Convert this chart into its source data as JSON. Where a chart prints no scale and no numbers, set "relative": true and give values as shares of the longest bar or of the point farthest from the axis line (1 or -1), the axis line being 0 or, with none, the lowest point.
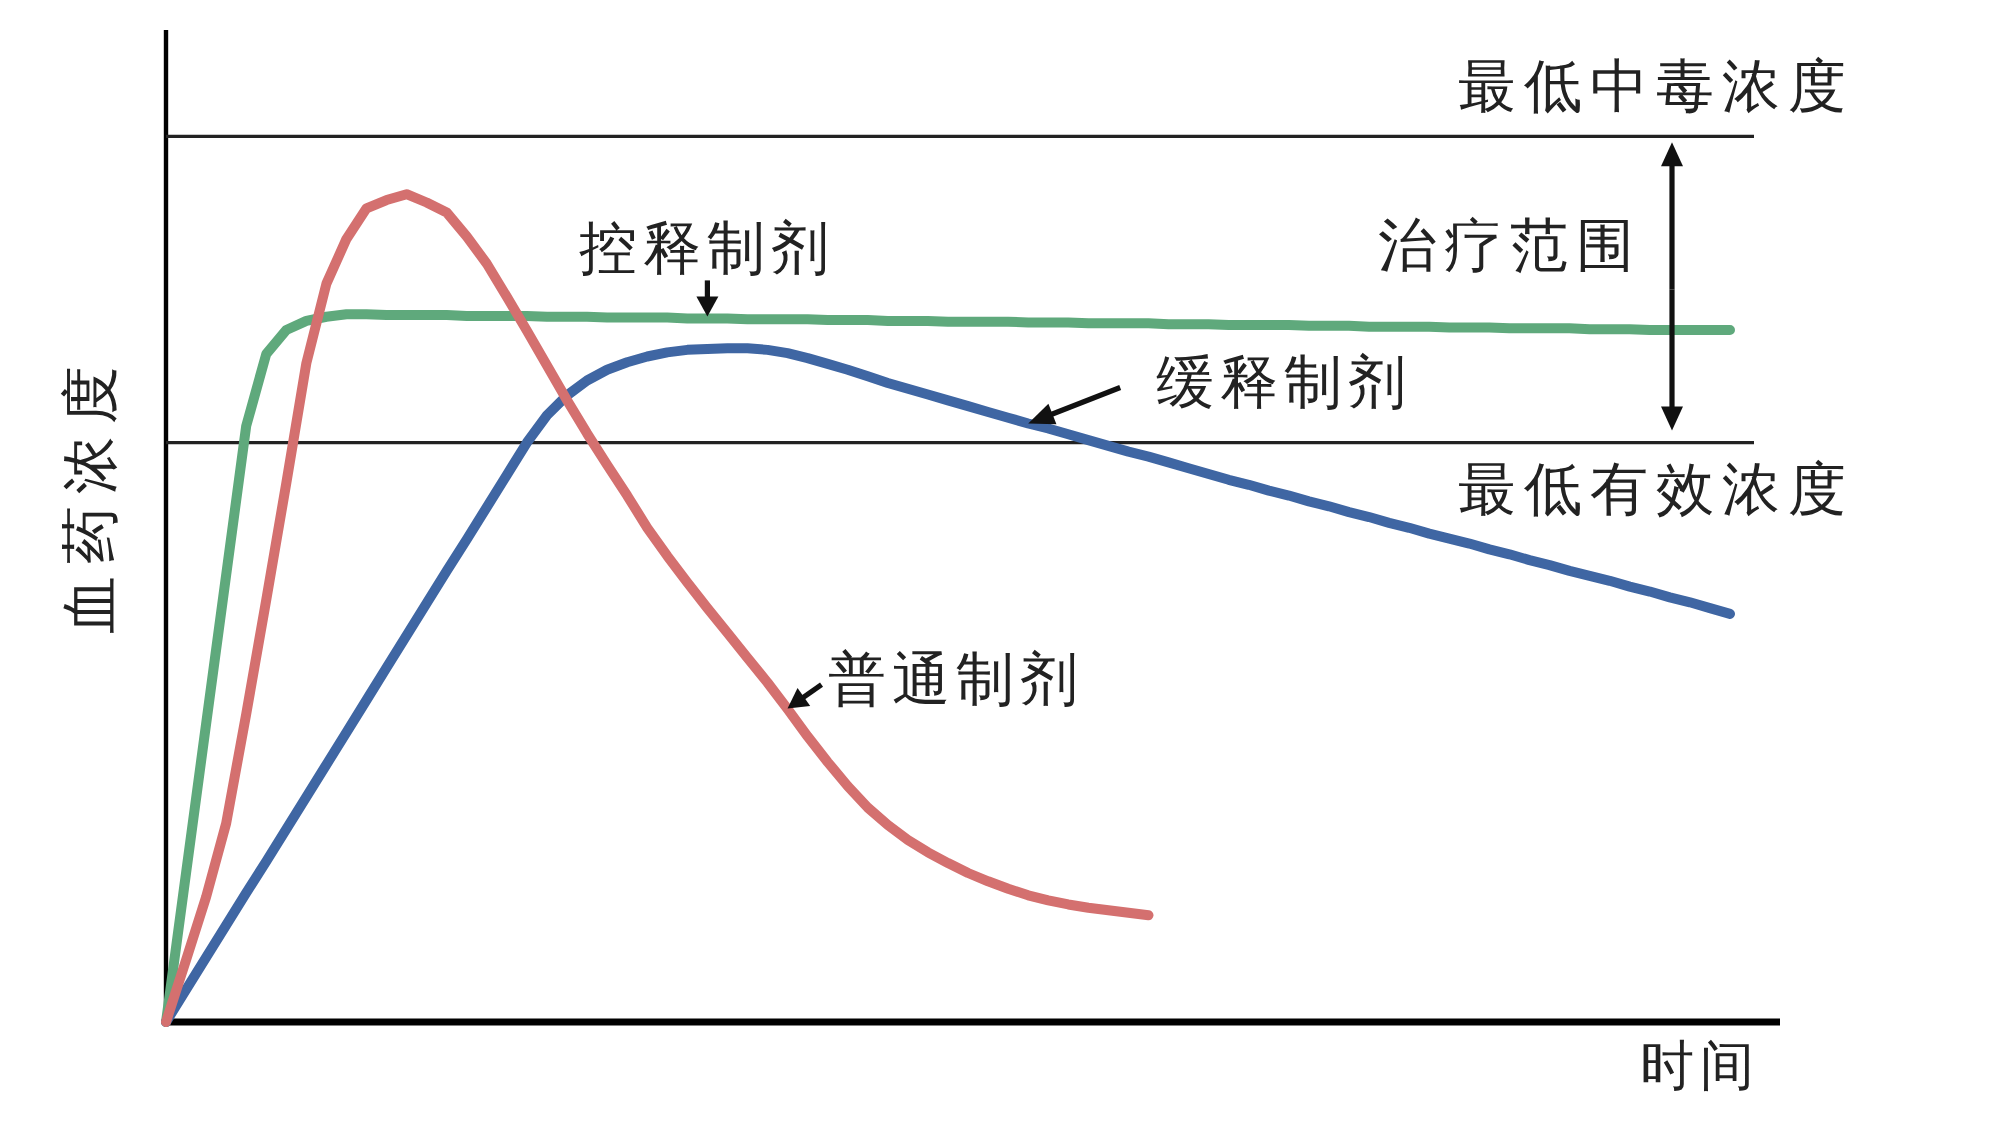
{
  "chart_data": {
    "type": "line",
    "relative": true,
    "xlabel": "时间",
    "ylabel": "血药浓度",
    "categories": [
      null,
      null,
      null,
      null,
      null,
      null,
      null,
      null,
      null,
      null,
      null,
      null,
      null,
      null,
      null,
      null,
      null,
      null,
      null,
      null,
      null,
      null,
      null,
      null,
      null,
      null,
      null,
      null,
      null,
      null,
      null,
      null,
      null,
      null,
      null,
      null,
      null,
      null,
      null,
      null,
      null,
      null,
      null,
      null,
      null,
      null,
      null,
      null,
      null,
      null,
      null,
      null,
      null,
      null,
      null,
      null,
      null,
      null,
      null,
      null,
      null,
      null,
      null,
      null,
      null,
      null,
      null,
      null,
      null,
      null,
      null,
      null,
      null,
      null,
      null,
      null,
      null,
      null,
      null
    ],
    "series": [
      {
        "name": "控释制剂",
        "color": "#5fa97c",
        "values": [
          0,
          0.18,
          0.36,
          0.54,
          0.72,
          0.807,
          0.836,
          0.847,
          0.852,
          0.855,
          0.855,
          0.854,
          0.854,
          0.854,
          0.854,
          0.853,
          0.853,
          0.853,
          0.853,
          0.852,
          0.852,
          0.852,
          0.851,
          0.851,
          0.851,
          0.851,
          0.85,
          0.85,
          0.85,
          0.849,
          0.849,
          0.849,
          0.849,
          0.848,
          0.848,
          0.848,
          0.847,
          0.847,
          0.847,
          0.846,
          0.846,
          0.846,
          0.846,
          0.845,
          0.845,
          0.845,
          0.844,
          0.844,
          0.844,
          0.844,
          0.843,
          0.843,
          0.843,
          0.842,
          0.842,
          0.842,
          0.842,
          0.841,
          0.841,
          0.841,
          0.84,
          0.84,
          0.84,
          0.84,
          0.839,
          0.839,
          0.839,
          0.838,
          0.838,
          0.838,
          0.838,
          0.837,
          0.837,
          0.837,
          0.836,
          0.836,
          0.836,
          0.836,
          0.836
        ]
      },
      {
        "name": "缓释制剂",
        "color": "#3f66a3",
        "values": [
          0,
          0.039,
          0.078,
          0.117,
          0.156,
          0.194,
          0.233,
          0.272,
          0.311,
          0.35,
          0.389,
          0.428,
          0.467,
          0.506,
          0.545,
          0.583,
          0.622,
          0.661,
          0.7,
          0.733,
          0.757,
          0.775,
          0.788,
          0.797,
          0.804,
          0.809,
          0.812,
          0.813,
          0.814,
          0.814,
          0.812,
          0.808,
          0.802,
          0.795,
          0.788,
          0.78,
          0.772,
          0.765,
          0.758,
          0.751,
          0.744,
          0.737,
          0.73,
          0.723,
          0.717,
          0.71,
          0.703,
          0.696,
          0.689,
          0.683,
          0.676,
          0.669,
          0.662,
          0.655,
          0.649,
          0.642,
          0.636,
          0.629,
          0.623,
          0.616,
          0.61,
          0.603,
          0.597,
          0.59,
          0.584,
          0.578,
          0.571,
          0.565,
          0.558,
          0.552,
          0.545,
          0.539,
          0.533,
          0.526,
          0.52,
          0.513,
          0.507,
          0.5,
          0.493
        ]
      },
      {
        "name": "普通制剂",
        "color": "#d4706f",
        "values": [
          0,
          0.075,
          0.151,
          0.24,
          0.372,
          0.51,
          0.651,
          0.796,
          0.892,
          0.946,
          0.983,
          0.993,
          1,
          0.99,
          0.978,
          0.949,
          0.916,
          0.876,
          0.835,
          0.793,
          0.751,
          0.711,
          0.673,
          0.636,
          0.597,
          0.563,
          0.531,
          0.5,
          0.47,
          0.44,
          0.41,
          0.378,
          0.345,
          0.314,
          0.285,
          0.259,
          0.238,
          0.22,
          0.205,
          0.192,
          0.18,
          0.17,
          0.161,
          0.153,
          0.147,
          0.142,
          0.138,
          0.135,
          0.132,
          0.129,
          null,
          null,
          null,
          null,
          null,
          null,
          null,
          null,
          null,
          null,
          null,
          null,
          null,
          null,
          null,
          null,
          null,
          null,
          null,
          null,
          null,
          null,
          null,
          null,
          null,
          null,
          null,
          null,
          null
        ]
      }
    ],
    "ref_lines": [
      {
        "axis": "y",
        "value": 1.07,
        "label": "最低中毒浓度"
      },
      {
        "axis": "y",
        "value": 0.7,
        "label": "最低有效浓度"
      }
    ],
    "annotations": [
      "治疗范围"
    ]
  }
}
